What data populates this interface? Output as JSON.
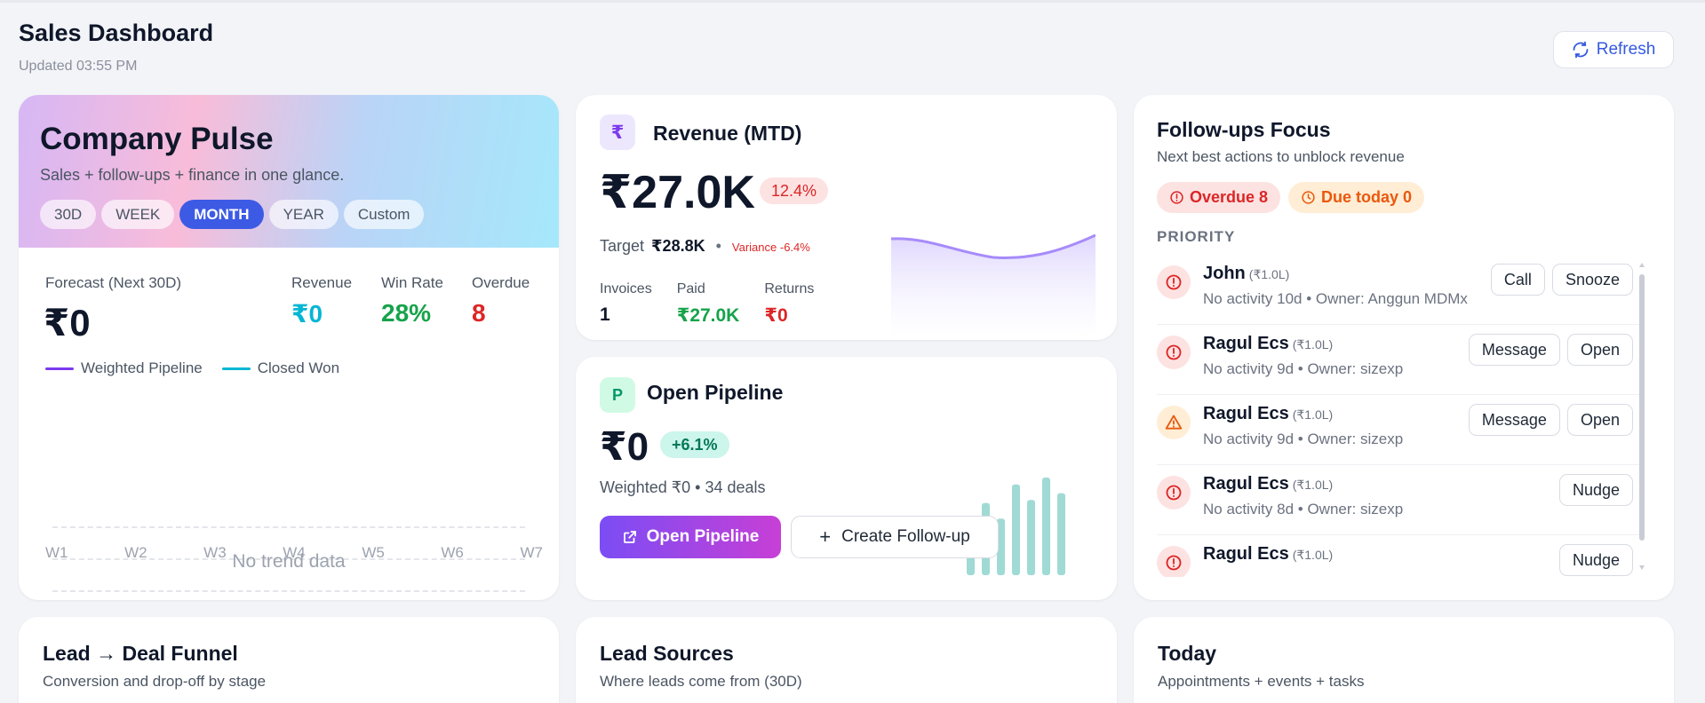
{
  "header": {
    "title": "Sales Dashboard",
    "updated": "Updated 03:55 PM",
    "refresh_label": "Refresh"
  },
  "pulse": {
    "title": "Company Pulse",
    "subtitle": "Sales + follow-ups + finance in one glance.",
    "ranges": [
      "30D",
      "WEEK",
      "MONTH",
      "YEAR",
      "Custom"
    ],
    "active_range": "MONTH",
    "forecast_label": "Forecast (Next 30D)",
    "forecast_value": "₹0",
    "kpis": [
      {
        "label": "Revenue",
        "value": "₹0",
        "color": "#06b6d4"
      },
      {
        "label": "Win Rate",
        "value": "28%",
        "color": "#16a34a"
      },
      {
        "label": "Overdue",
        "value": "8",
        "color": "#dc2626"
      }
    ],
    "legend": [
      {
        "label": "Weighted Pipeline",
        "color": "#7c3aed"
      },
      {
        "label": "Closed Won",
        "color": "#06b6d4"
      }
    ],
    "no_data": "No trend data",
    "weeks": [
      "W1",
      "W2",
      "W3",
      "W4",
      "W5",
      "W6",
      "W7"
    ]
  },
  "revenue": {
    "icon": "₹",
    "title": "Revenue (MTD)",
    "value": "₹27.0K",
    "change": "12.4%",
    "target_label": "Target",
    "target_value": "₹28.8K",
    "variance": "Variance -6.4%",
    "stats": [
      {
        "label": "Invoices",
        "value": "1",
        "color": "#0f172a"
      },
      {
        "label": "Paid",
        "value": "₹27.0K",
        "color": "#16a34a"
      },
      {
        "label": "Returns",
        "value": "₹0",
        "color": "#dc2626"
      }
    ]
  },
  "pipeline": {
    "icon": "P",
    "title": "Open Pipeline",
    "value": "₹0",
    "change": "+6.1%",
    "weighted": "Weighted ₹0 • 34 deals",
    "open_label": "Open Pipeline",
    "create_label": "Create Follow-up",
    "bar_levels": [
      0.45,
      0.74,
      0.58,
      0.93,
      0.77,
      1.0,
      0.84
    ]
  },
  "followups": {
    "title": "Follow-ups Focus",
    "subtitle": "Next best actions to unblock revenue",
    "overdue": "Overdue 8",
    "due_today": "Due today 0",
    "priority_label": "PRIORITY",
    "rows": [
      {
        "name": "John",
        "amount": "(₹1.0L)",
        "meta": "No activity 10d • Owner: Anggun MDMx",
        "level": "danger",
        "actions": [
          "Call",
          "Snooze"
        ]
      },
      {
        "name": "Ragul Ecs",
        "amount": "(₹1.0L)",
        "meta": "No activity 9d • Owner: sizexp",
        "level": "danger",
        "actions": [
          "Message",
          "Open"
        ]
      },
      {
        "name": "Ragul Ecs",
        "amount": "(₹1.0L)",
        "meta": "No activity 9d • Owner: sizexp",
        "level": "warning",
        "actions": [
          "Message",
          "Open"
        ]
      },
      {
        "name": "Ragul Ecs",
        "amount": "(₹1.0L)",
        "meta": "No activity 8d • Owner: sizexp",
        "level": "danger",
        "actions": [
          "Nudge"
        ]
      },
      {
        "name": "Ragul Ecs",
        "amount": "(₹1.0L)",
        "meta": "",
        "level": "danger",
        "actions": [
          "Nudge"
        ]
      }
    ]
  },
  "bottom": [
    {
      "title": "Lead → Deal Funnel",
      "subtitle": "Conversion and drop-off by stage"
    },
    {
      "title": "Lead Sources",
      "subtitle": "Where leads come from (30D)"
    },
    {
      "title": "Today",
      "subtitle": "Appointments + events + tasks"
    }
  ]
}
